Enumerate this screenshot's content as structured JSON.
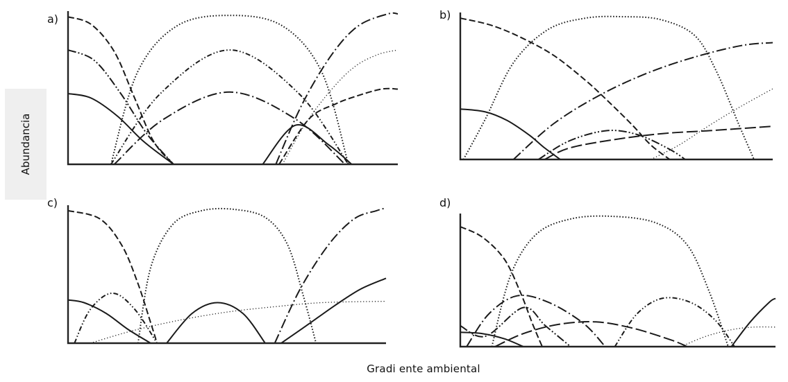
{
  "labels": {
    "ylabel": "Abundancia",
    "xlabel": "Gradi ente ambiental"
  },
  "chart_data": [
    {
      "type": "line",
      "panel": "a)",
      "xlim": [
        0,
        1
      ],
      "ylim": [
        0,
        1
      ],
      "series": [
        {
          "style": "solid",
          "x": [
            0,
            0.07,
            0.15,
            0.23,
            0.32
          ],
          "y": [
            0.47,
            0.44,
            0.32,
            0.15,
            0
          ]
        },
        {
          "style": "dashed",
          "x": [
            0,
            0.07,
            0.14,
            0.2,
            0.26,
            0.32
          ],
          "y": [
            0.98,
            0.93,
            0.75,
            0.45,
            0.15,
            0
          ]
        },
        {
          "style": "longdash-dot-dot",
          "x": [
            0,
            0.08,
            0.16,
            0.24,
            0.32
          ],
          "y": [
            0.76,
            0.69,
            0.47,
            0.2,
            0
          ]
        },
        {
          "style": "dash-dot-dot",
          "x": [
            0.13,
            0.28,
            0.49,
            0.7,
            0.85
          ],
          "y": [
            0,
            0.47,
            0.76,
            0.47,
            0
          ]
        },
        {
          "style": "dotted",
          "x": [
            0.13,
            0.21,
            0.33,
            0.49,
            0.65,
            0.77,
            0.85
          ],
          "y": [
            0,
            0.61,
            0.92,
            0.99,
            0.92,
            0.61,
            0
          ]
        },
        {
          "style": "longdash-dot",
          "x": [
            0.14,
            0.29,
            0.49,
            0.69,
            0.84
          ],
          "y": [
            0,
            0.3,
            0.48,
            0.3,
            0
          ]
        },
        {
          "style": "solid",
          "x": [
            0.59,
            0.69,
            0.79,
            0.86
          ],
          "y": [
            0,
            0.26,
            0.13,
            0
          ]
        },
        {
          "style": "longdash-dot",
          "x": [
            0.63,
            0.71,
            0.8,
            0.88,
            0.97,
            1.0
          ],
          "y": [
            0,
            0.4,
            0.73,
            0.92,
            1.0,
            1.0
          ]
        },
        {
          "style": "dashed",
          "x": [
            0.64,
            0.73,
            0.81,
            0.87,
            0.95,
            1.0
          ],
          "y": [
            0,
            0.3,
            0.4,
            0.45,
            0.5,
            0.5
          ]
        },
        {
          "style": "fine-dotted",
          "x": [
            0.65,
            0.72,
            0.8,
            0.87,
            0.94,
            1.0
          ],
          "y": [
            0,
            0.27,
            0.5,
            0.65,
            0.73,
            0.76
          ]
        }
      ]
    },
    {
      "type": "line",
      "panel": "b)",
      "xlim": [
        0,
        1
      ],
      "ylim": [
        0,
        1
      ],
      "series": [
        {
          "style": "dashed",
          "x": [
            0,
            0.1,
            0.2,
            0.3,
            0.4,
            0.47,
            0.55,
            0.61,
            0.67
          ],
          "y": [
            0.98,
            0.93,
            0.84,
            0.72,
            0.55,
            0.41,
            0.24,
            0.1,
            0
          ]
        },
        {
          "style": "dotted",
          "x": [
            0.01,
            0.08,
            0.17,
            0.28,
            0.4,
            0.52,
            0.64,
            0.75,
            0.82,
            0.89,
            0.94
          ],
          "y": [
            0,
            0.28,
            0.67,
            0.9,
            0.98,
            0.99,
            0.97,
            0.86,
            0.61,
            0.25,
            0
          ]
        },
        {
          "style": "solid",
          "x": [
            0,
            0.08,
            0.15,
            0.22,
            0.27,
            0.32
          ],
          "y": [
            0.35,
            0.33,
            0.27,
            0.17,
            0.08,
            0
          ]
        },
        {
          "style": "longdash-dot",
          "x": [
            0.17,
            0.3,
            0.45,
            0.6,
            0.75,
            0.9,
            1.0
          ],
          "y": [
            0,
            0.25,
            0.45,
            0.6,
            0.71,
            0.79,
            0.81
          ]
        },
        {
          "style": "longdash-dot-dot",
          "x": [
            0.25,
            0.35,
            0.47,
            0.57,
            0.67,
            0.72
          ],
          "y": [
            0,
            0.13,
            0.2,
            0.17,
            0.07,
            0
          ]
        },
        {
          "style": "longdash",
          "x": [
            0.27,
            0.35,
            0.5,
            0.65,
            0.8,
            1.0
          ],
          "y": [
            0,
            0.08,
            0.14,
            0.18,
            0.2,
            0.23
          ]
        },
        {
          "style": "fine-dotted",
          "x": [
            0.61,
            0.7,
            0.8,
            0.9,
            1.0
          ],
          "y": [
            0,
            0.1,
            0.24,
            0.37,
            0.49
          ]
        }
      ]
    },
    {
      "type": "line",
      "panel": "c)",
      "xlim": [
        0,
        1
      ],
      "ylim": [
        0,
        1
      ],
      "series": [
        {
          "style": "dashed",
          "x": [
            0,
            0.1,
            0.17,
            0.22,
            0.26,
            0.28
          ],
          "y": [
            0.98,
            0.92,
            0.72,
            0.44,
            0.15,
            0
          ]
        },
        {
          "style": "dotted",
          "x": [
            0.22,
            0.26,
            0.33,
            0.42,
            0.52,
            0.62,
            0.69,
            0.74,
            0.78
          ],
          "y": [
            0,
            0.56,
            0.88,
            0.98,
            0.99,
            0.93,
            0.73,
            0.35,
            0
          ]
        },
        {
          "style": "solid",
          "x": [
            0,
            0.05,
            0.12,
            0.19,
            0.26
          ],
          "y": [
            0.32,
            0.3,
            0.22,
            0.1,
            0
          ]
        },
        {
          "style": "dash-dot-dot",
          "x": [
            0.02,
            0.07,
            0.14,
            0.21,
            0.28
          ],
          "y": [
            0,
            0.25,
            0.37,
            0.25,
            0
          ]
        },
        {
          "style": "fine-dotted",
          "x": [
            0.07,
            0.2,
            0.35,
            0.5,
            0.65,
            0.8,
            1.0
          ],
          "y": [
            0,
            0.09,
            0.17,
            0.23,
            0.27,
            0.3,
            0.31
          ]
        },
        {
          "style": "solid",
          "x": [
            0.31,
            0.39,
            0.47,
            0.55,
            0.62
          ],
          "y": [
            0,
            0.22,
            0.3,
            0.22,
            0
          ]
        },
        {
          "style": "longdash-dot",
          "x": [
            0.65,
            0.73,
            0.82,
            0.9,
            0.97,
            1.0
          ],
          "y": [
            0,
            0.4,
            0.73,
            0.92,
            0.98,
            1.0
          ]
        },
        {
          "style": "solid",
          "x": [
            0.67,
            0.75,
            0.84,
            0.92,
            1.0
          ],
          "y": [
            0,
            0.13,
            0.28,
            0.4,
            0.48
          ]
        }
      ]
    },
    {
      "type": "line",
      "panel": "d)",
      "xlim": [
        0,
        1
      ],
      "ylim": [
        0,
        1
      ],
      "series": [
        {
          "style": "dashed",
          "x": [
            0,
            0.07,
            0.14,
            0.19,
            0.23,
            0.26
          ],
          "y": [
            0.92,
            0.84,
            0.67,
            0.42,
            0.17,
            0
          ]
        },
        {
          "style": "dotted",
          "x": [
            0.1,
            0.16,
            0.24,
            0.35,
            0.48,
            0.62,
            0.72,
            0.79,
            0.85
          ],
          "y": [
            0,
            0.55,
            0.86,
            0.98,
            1.0,
            0.95,
            0.78,
            0.42,
            0
          ]
        },
        {
          "style": "longdash-dot-dot",
          "x": [
            0,
            0.08,
            0.2,
            0.27,
            0.35
          ],
          "y": [
            0.16,
            0.08,
            0.3,
            0.16,
            0
          ]
        },
        {
          "style": "longdash-dot",
          "x": [
            0.02,
            0.09,
            0.18,
            0.28,
            0.39,
            0.46
          ],
          "y": [
            0,
            0.25,
            0.39,
            0.34,
            0.18,
            0
          ]
        },
        {
          "style": "solid",
          "x": [
            0,
            0.07,
            0.14,
            0.2
          ],
          "y": [
            0.11,
            0.1,
            0.06,
            0
          ]
        },
        {
          "style": "longdash",
          "x": [
            0.11,
            0.2,
            0.31,
            0.43,
            0.55,
            0.67,
            0.72
          ],
          "y": [
            0,
            0.1,
            0.17,
            0.19,
            0.14,
            0.05,
            0
          ]
        },
        {
          "style": "dash-dot-dot",
          "x": [
            0.49,
            0.56,
            0.64,
            0.73,
            0.81,
            0.87
          ],
          "y": [
            0,
            0.25,
            0.37,
            0.34,
            0.2,
            0
          ]
        },
        {
          "style": "fine-dotted",
          "x": [
            0.7,
            0.78,
            0.86,
            0.93,
            1.0
          ],
          "y": [
            0,
            0.08,
            0.13,
            0.15,
            0.15
          ]
        },
        {
          "style": "solid",
          "x": [
            0.86,
            0.92,
            0.98,
            1.0
          ],
          "y": [
            0,
            0.19,
            0.34,
            0.37
          ]
        }
      ]
    }
  ]
}
